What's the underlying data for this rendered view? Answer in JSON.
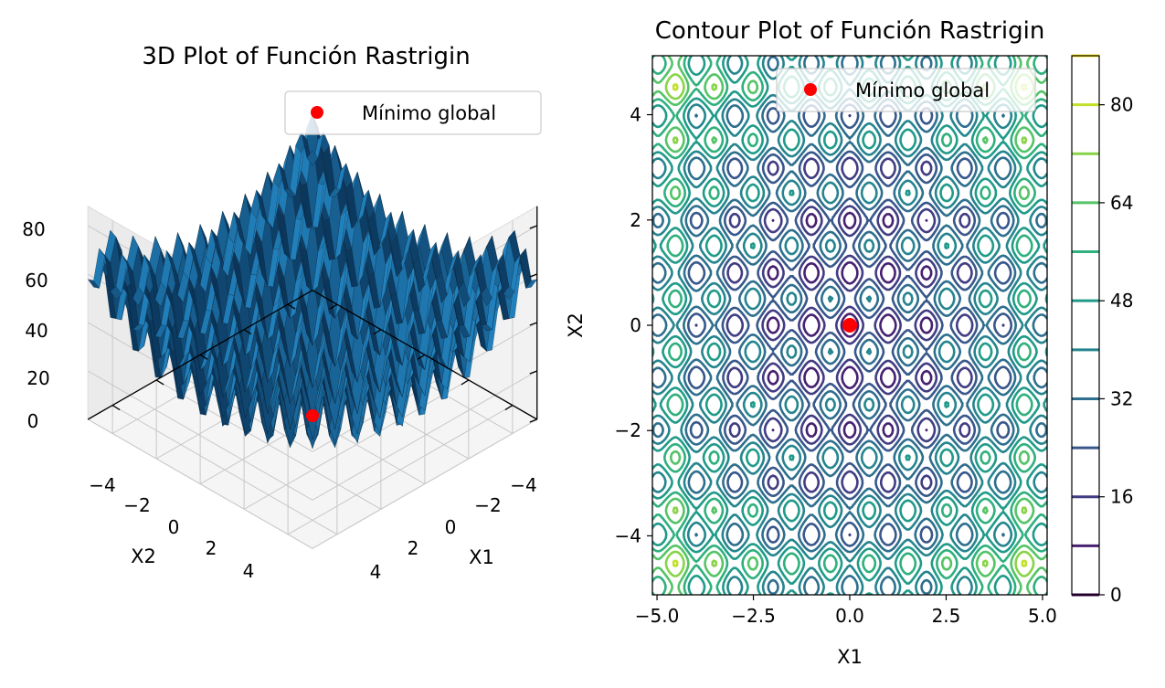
{
  "chart_data": [
    {
      "type": "surface3d",
      "title": "3D Plot of Función Rastrigin",
      "function": "Rastrigin",
      "xlabel": "X1",
      "ylabel": "X2",
      "zlabel": "",
      "xlim": [
        -5.12,
        5.12
      ],
      "ylim": [
        -5.12,
        5.12
      ],
      "zlim": [
        0,
        80
      ],
      "x_ticks": [
        "−4",
        "−2",
        "0",
        "2",
        "4"
      ],
      "y_ticks": [
        "−4",
        "−2",
        "0",
        "2",
        "4"
      ],
      "z_ticks": [
        "0",
        "20",
        "40",
        "60",
        "80"
      ],
      "surface_color": "#1f6fa8",
      "edge_color": "#0a2236",
      "marker": {
        "label": "Mínimo global",
        "x": 0,
        "y": 0,
        "z": 0,
        "color": "#ff0000"
      },
      "legend": "top-right"
    },
    {
      "type": "contour",
      "title": "Contour Plot of Función Rastrigin",
      "function": "Rastrigin",
      "xlabel": "X1",
      "ylabel": "X2",
      "xlim": [
        -5.12,
        5.12
      ],
      "ylim": [
        -5.12,
        5.12
      ],
      "x_ticks": [
        "−5.0",
        "−2.5",
        "0.0",
        "2.5",
        "5.0"
      ],
      "y_ticks": [
        "−4",
        "−2",
        "0",
        "2",
        "4"
      ],
      "levels": [
        0,
        8,
        16,
        24,
        32,
        40,
        48,
        56,
        64,
        72,
        80,
        88
      ],
      "colorbar_ticks": [
        "0",
        "16",
        "32",
        "48",
        "64",
        "80"
      ],
      "colormap": [
        "#440154",
        "#482878",
        "#3e4989",
        "#31688e",
        "#26828e",
        "#1f9e89",
        "#35b779",
        "#6ece58",
        "#b5de2b",
        "#fde725"
      ],
      "marker": {
        "label": "Mínimo global",
        "x": 0,
        "y": 0,
        "color": "#ff0000"
      },
      "legend": "top-right"
    }
  ]
}
